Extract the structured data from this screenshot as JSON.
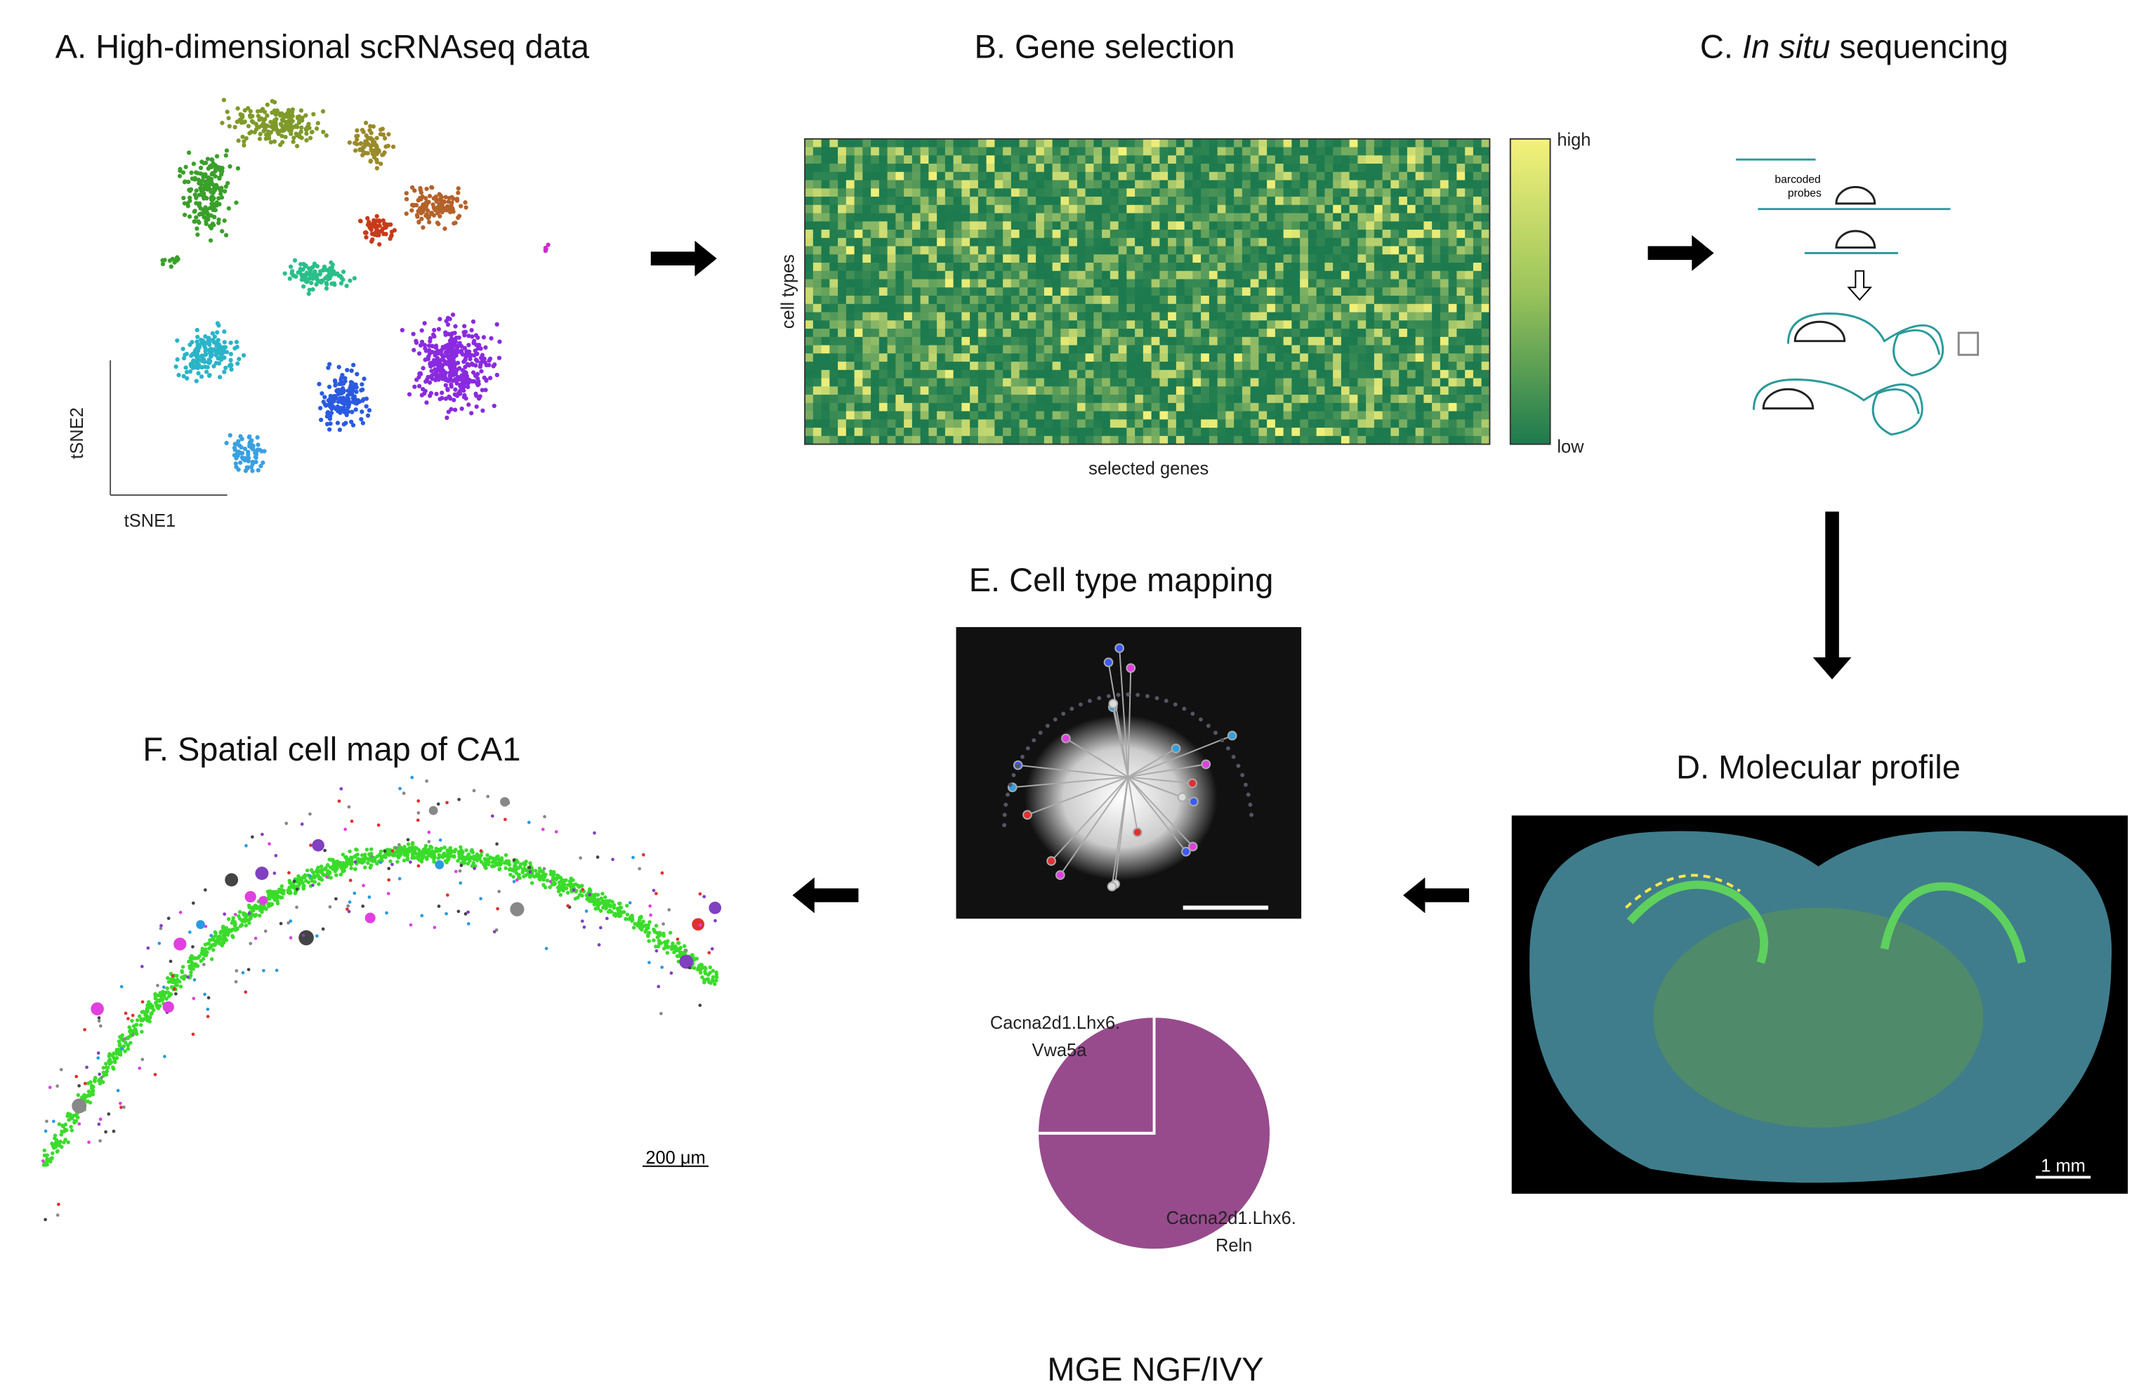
{
  "panels": {
    "a": {
      "title": "A. High-dimensional scRNAseq data",
      "y_axis": "tSNE2",
      "x_axis": "tSNE1"
    },
    "b": {
      "title": "B. Gene selection",
      "y_axis": "cell types",
      "x_axis": "selected genes",
      "colorbar_high": "high",
      "colorbar_low": "low"
    },
    "c": {
      "title_prefix": "C.",
      "title_italic": "In situ",
      "title_rest": "sequencing",
      "probe_label": [
        "barcoded",
        "probes"
      ]
    },
    "d": {
      "title": "D. Molecular profile",
      "scale_bar": "1 mm"
    },
    "e": {
      "title": "E. Cell type mapping",
      "pie": {
        "labels": [
          [
            "Cacna2d1.Lhx6.",
            "Reln"
          ],
          [
            "Cacna2d1.Lhx6.",
            "Vwa5a"
          ]
        ],
        "values": [
          75,
          25
        ],
        "color": "#974b8c"
      },
      "caption": "MGE NGF/IVY"
    },
    "f": {
      "title": "F. Spatial cell map of CA1",
      "scale_bar": "200 μm"
    }
  }
}
